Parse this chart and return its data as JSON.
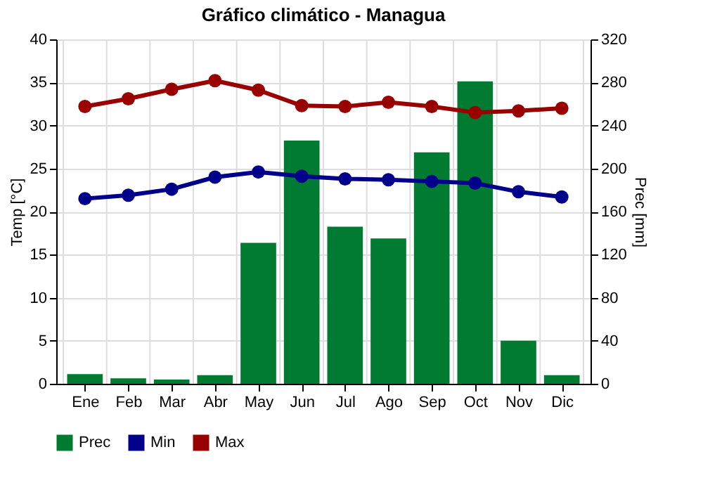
{
  "chart_data": {
    "type": "bar",
    "title": "Gráfico climático - Managua",
    "categories": [
      "Ene",
      "Feb",
      "Mar",
      "Abr",
      "May",
      "Jun",
      "Jul",
      "Ago",
      "Sep",
      "Oct",
      "Nov",
      "Dic"
    ],
    "series": [
      {
        "name": "Prec",
        "axis": "y2",
        "color": "#017b31",
        "values": [
          9,
          5,
          4,
          8,
          131,
          226,
          146,
          135,
          215,
          281,
          40,
          8
        ]
      },
      {
        "name": "Min",
        "type": "line",
        "color": "#00008b",
        "values": [
          21.5,
          21.9,
          22.6,
          24.0,
          24.6,
          24.1,
          23.8,
          23.7,
          23.5,
          23.3,
          22.3,
          21.7
        ]
      },
      {
        "name": "Max",
        "type": "line",
        "color": "#990000",
        "values": [
          32.2,
          33.1,
          34.2,
          35.2,
          34.1,
          32.3,
          32.2,
          32.7,
          32.2,
          31.5,
          31.7,
          32.0
        ]
      }
    ],
    "ylabel": "Temp [°C]",
    "y2label": "Prec [mm]",
    "ylim": [
      0,
      40
    ],
    "yticks": [
      0,
      5,
      10,
      15,
      20,
      25,
      30,
      35,
      40
    ],
    "y2lim": [
      0,
      320
    ],
    "y2ticks": [
      0,
      40,
      80,
      120,
      160,
      200,
      240,
      280,
      320
    ],
    "grid": true,
    "legend": "bottom",
    "marker": "circle",
    "line_style": "solid"
  }
}
